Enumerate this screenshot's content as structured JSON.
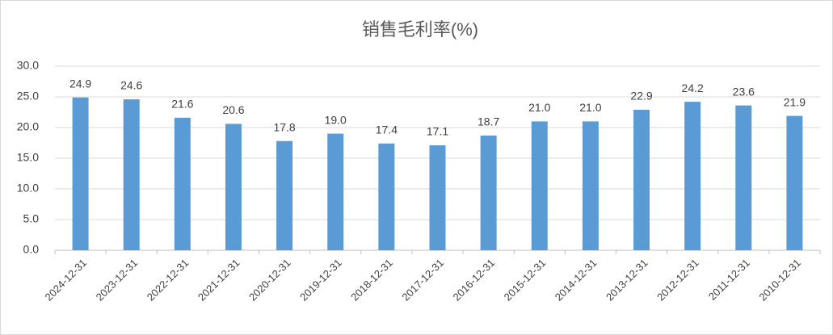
{
  "chart_data": {
    "type": "bar",
    "title": "销售毛利率(%)",
    "categories": [
      "2024-12-31",
      "2023-12-31",
      "2022-12-31",
      "2021-12-31",
      "2020-12-31",
      "2019-12-31",
      "2018-12-31",
      "2017-12-31",
      "2016-12-31",
      "2015-12-31",
      "2014-12-31",
      "2013-12-31",
      "2012-12-31",
      "2011-12-31",
      "2010-12-31"
    ],
    "values": [
      24.9,
      24.6,
      21.6,
      20.6,
      17.8,
      19.0,
      17.4,
      17.1,
      18.7,
      21.0,
      21.0,
      22.9,
      24.2,
      23.6,
      21.9
    ],
    "value_labels": [
      "24.9",
      "24.6",
      "21.6",
      "20.6",
      "17.8",
      "19.0",
      "17.4",
      "17.1",
      "18.7",
      "21.0",
      "21.0",
      "22.9",
      "24.2",
      "23.6",
      "21.9"
    ],
    "color": "#5b9bd5",
    "ylim": [
      0,
      30
    ],
    "yticks": [
      {
        "value": 0,
        "label": "0.0"
      },
      {
        "value": 5,
        "label": "5.0"
      },
      {
        "value": 10,
        "label": "10.0"
      },
      {
        "value": 15,
        "label": "15.0"
      },
      {
        "value": 20,
        "label": "20.0"
      },
      {
        "value": 25,
        "label": "25.0"
      },
      {
        "value": 30,
        "label": "30.0"
      }
    ],
    "grid": true
  }
}
